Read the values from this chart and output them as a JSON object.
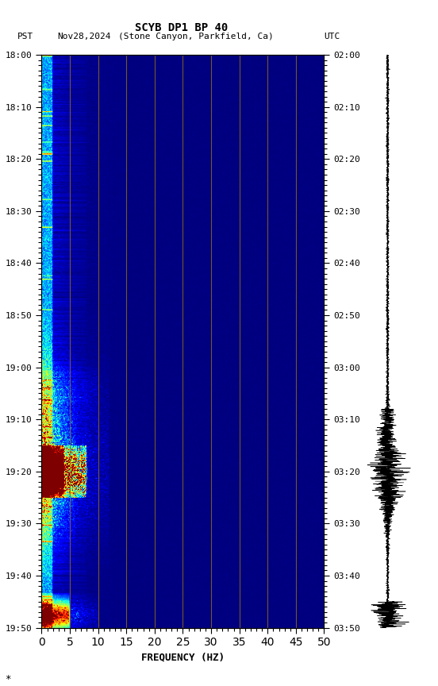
{
  "title_line1": "SCYB DP1 BP 40",
  "title_line2_pst": "PST",
  "title_line2_date": "Nov28,2024",
  "title_line2_loc": "(Stone Canyon, Parkfield, Ca)",
  "title_line2_utc": "UTC",
  "xlabel": "FREQUENCY (HZ)",
  "freq_min": 0,
  "freq_max": 50,
  "pst_ticks": [
    "18:00",
    "18:10",
    "18:20",
    "18:30",
    "18:40",
    "18:50",
    "19:00",
    "19:10",
    "19:20",
    "19:30",
    "19:40",
    "19:50"
  ],
  "utc_ticks": [
    "02:00",
    "02:10",
    "02:20",
    "02:30",
    "02:40",
    "02:50",
    "03:00",
    "03:10",
    "03:20",
    "03:30",
    "03:40",
    "03:50"
  ],
  "freq_gridlines": [
    5,
    10,
    15,
    20,
    25,
    30,
    35,
    40,
    45
  ],
  "background_color": "#ffffff",
  "gridline_color": "#8B6914"
}
